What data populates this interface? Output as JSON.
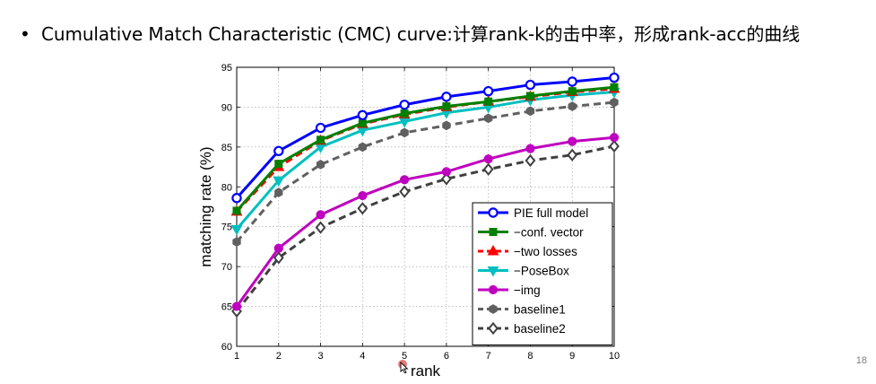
{
  "slide": {
    "bullet": "•",
    "text": "Cumulative Match Characteristic (CMC) curve:计算rank-k的击中率，形成rank-acc的曲线",
    "page_number": "18"
  },
  "chart_data": {
    "type": "line",
    "title": "",
    "xlabel": "rank",
    "ylabel": "matching rate (%)",
    "x": [
      1,
      2,
      3,
      4,
      5,
      6,
      7,
      8,
      9,
      10
    ],
    "xlim": [
      1,
      10
    ],
    "ylim": [
      60,
      95
    ],
    "xticks": [
      "1",
      "2",
      "3",
      "4",
      "5",
      "6",
      "7",
      "8",
      "9",
      "10"
    ],
    "yticks": [
      "60",
      "65",
      "70",
      "75",
      "80",
      "85",
      "90",
      "95"
    ],
    "grid": true,
    "legend_position": "lower-right",
    "series": [
      {
        "name": "PIE full model",
        "color": "#0000ff",
        "dash": "solid",
        "marker": "circle-open",
        "values": [
          78.6,
          84.5,
          87.4,
          89.0,
          90.3,
          91.3,
          92.0,
          92.8,
          93.2,
          93.7
        ]
      },
      {
        "name": "−conf. vector",
        "color": "#008000",
        "dash": "solid",
        "marker": "square",
        "values": [
          77.0,
          82.9,
          85.9,
          88.0,
          89.2,
          90.1,
          90.7,
          91.4,
          92.0,
          92.5
        ]
      },
      {
        "name": "−two losses",
        "color": "#ff0000",
        "dash": "dashed",
        "marker": "triangle-up",
        "values": [
          76.9,
          82.5,
          85.8,
          87.9,
          89.1,
          90.0,
          90.7,
          91.3,
          91.9,
          92.3
        ]
      },
      {
        "name": "−PoseBox",
        "color": "#00bfbf",
        "dash": "solid",
        "marker": "triangle-down",
        "values": [
          74.7,
          80.8,
          85.0,
          87.1,
          88.2,
          89.3,
          90.0,
          90.9,
          91.5,
          91.9
        ]
      },
      {
        "name": "−img",
        "color": "#bf00bf",
        "dash": "solid",
        "marker": "circle",
        "values": [
          65.0,
          72.3,
          76.5,
          78.9,
          80.9,
          81.9,
          83.5,
          84.8,
          85.7,
          86.2
        ]
      },
      {
        "name": "baseline1",
        "color": "#606060",
        "dash": "dashed",
        "marker": "hexagon",
        "values": [
          73.1,
          79.3,
          82.8,
          85.0,
          86.8,
          87.7,
          88.6,
          89.5,
          90.1,
          90.6
        ]
      },
      {
        "name": "baseline2",
        "color": "#404040",
        "dash": "dashed",
        "marker": "diamond-open",
        "values": [
          64.4,
          71.1,
          74.9,
          77.3,
          79.4,
          81.0,
          82.2,
          83.3,
          84.0,
          85.1
        ]
      }
    ]
  }
}
